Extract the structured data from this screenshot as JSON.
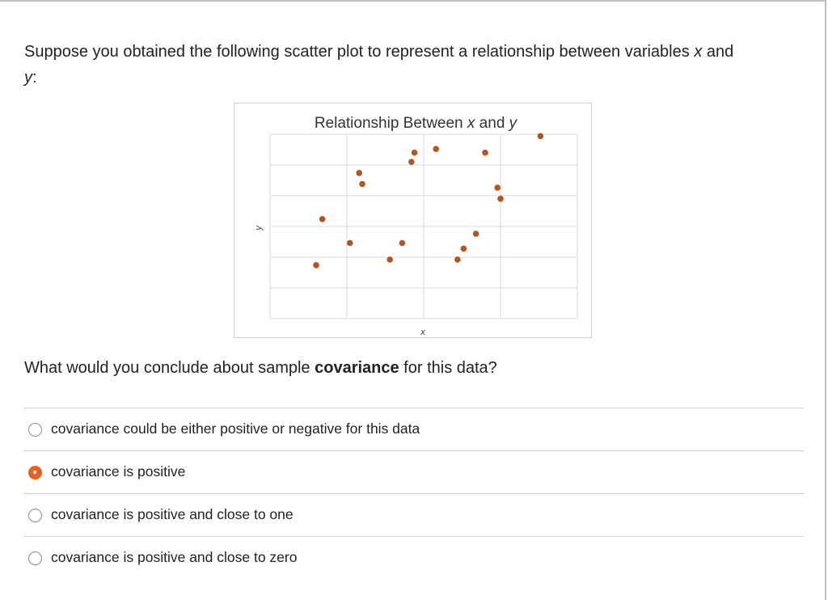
{
  "question": {
    "text_before": "Suppose you obtained the following scatter plot to represent a relationship between variables ",
    "var_x": "x",
    "text_mid": " and ",
    "var_y": "y",
    "text_after": ":"
  },
  "prompt": {
    "before": "What would you conclude about sample ",
    "bold": "covariance",
    "after": " for this data?"
  },
  "options": [
    {
      "label": "covariance could be either positive or negative for this data",
      "selected": false
    },
    {
      "label": "covariance is positive",
      "selected": true
    },
    {
      "label": "covariance is positive and close to one",
      "selected": false
    },
    {
      "label": "covariance is positive and close to zero",
      "selected": false
    }
  ],
  "colors": {
    "point": "#b5541c",
    "accent": "#e8601c",
    "grid": "#d9d9d9"
  },
  "chart_data": {
    "type": "scatter",
    "title_prefix": "Relationship Between ",
    "title_x": "x",
    "title_mid": " and ",
    "title_y": "y",
    "xlabel": "x",
    "ylabel": "y",
    "grid": true,
    "xlim": [
      0,
      10
    ],
    "ylim": [
      0,
      10
    ],
    "points": [
      {
        "x": 1.5,
        "y": 2.9
      },
      {
        "x": 1.7,
        "y": 5.4
      },
      {
        "x": 2.6,
        "y": 4.1
      },
      {
        "x": 2.9,
        "y": 7.9
      },
      {
        "x": 3.0,
        "y": 7.3
      },
      {
        "x": 3.9,
        "y": 3.2
      },
      {
        "x": 4.3,
        "y": 4.1
      },
      {
        "x": 4.6,
        "y": 8.5
      },
      {
        "x": 4.7,
        "y": 9.0
      },
      {
        "x": 5.4,
        "y": 9.2
      },
      {
        "x": 6.1,
        "y": 3.2
      },
      {
        "x": 6.3,
        "y": 3.8
      },
      {
        "x": 6.7,
        "y": 4.6
      },
      {
        "x": 7.0,
        "y": 9.0
      },
      {
        "x": 7.4,
        "y": 7.1
      },
      {
        "x": 7.5,
        "y": 6.5
      },
      {
        "x": 8.8,
        "y": 9.9
      }
    ]
  }
}
